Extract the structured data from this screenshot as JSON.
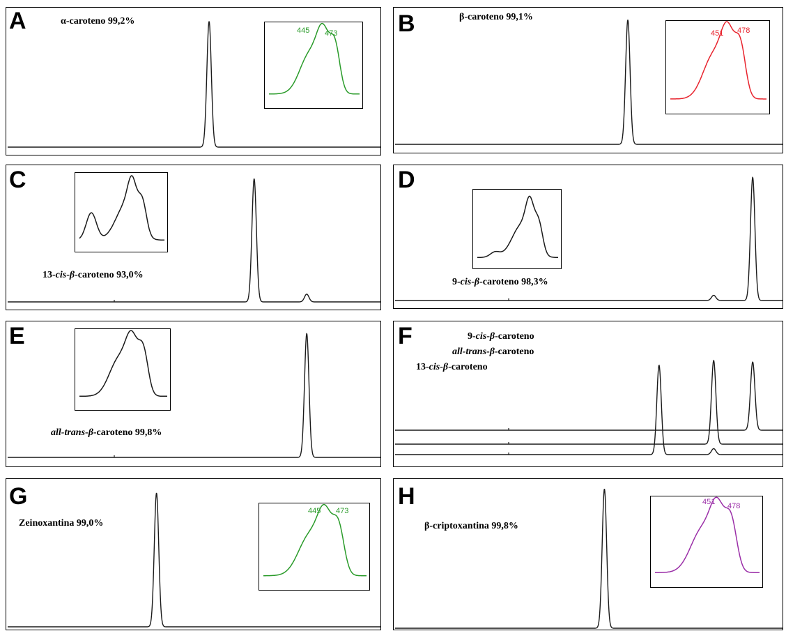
{
  "figure": {
    "panels": [
      {
        "letter": "A",
        "label": "α-caroteno 99,2%"
      },
      {
        "letter": "B",
        "label": "β-caroteno 99,1%"
      },
      {
        "letter": "C",
        "label": "13-cis-β-caroteno 93,0%"
      },
      {
        "letter": "D",
        "label": "9-cis-β-caroteno 98,3%"
      },
      {
        "letter": "E",
        "label": "all-trans-β-caroteno 99,8%"
      },
      {
        "letter": "F",
        "labels": [
          "9-cis-β-caroteno",
          "all-trans-β-caroteno",
          "13-cis-β-caroteno"
        ]
      },
      {
        "letter": "G",
        "label": "Zeinoxantina 99,0%"
      },
      {
        "letter": "H",
        "label": "β-criptoxantina 99,8%"
      }
    ],
    "colors": {
      "trace": "#1a1a1a",
      "green": "#2a9b2a",
      "red": "#e8242e",
      "purple": "#9b2fa8"
    }
  },
  "chart_data": [
    {
      "id": "A",
      "type": "line",
      "chromatogram_peaks": [
        {
          "x": 0.54,
          "height": 0.96
        }
      ],
      "inset": {
        "peak_labels": [
          "445",
          "473"
        ],
        "color": "#2a9b2a"
      }
    },
    {
      "id": "B",
      "type": "line",
      "chromatogram_peaks": [
        {
          "x": 0.6,
          "height": 0.95
        }
      ],
      "inset": {
        "peak_labels": [
          "451",
          "478"
        ],
        "color": "#e8242e"
      }
    },
    {
      "id": "C",
      "type": "line",
      "chromatogram_peaks": [
        {
          "x": 0.66,
          "height": 0.95
        },
        {
          "x": 0.8,
          "height": 0.06
        }
      ],
      "inset": {
        "peak_labels": [],
        "color": "#1a1a1a"
      }
    },
    {
      "id": "D",
      "type": "line",
      "chromatogram_peaks": [
        {
          "x": 0.92,
          "height": 0.95
        },
        {
          "x": 0.82,
          "height": 0.04
        }
      ],
      "inset": {
        "peak_labels": [],
        "color": "#1a1a1a"
      }
    },
    {
      "id": "E",
      "type": "line",
      "chromatogram_peaks": [
        {
          "x": 0.8,
          "height": 0.95
        }
      ],
      "inset": {
        "peak_labels": [],
        "color": "#1a1a1a"
      }
    },
    {
      "id": "F",
      "type": "line",
      "series": [
        {
          "peaks": [
            {
              "x": 0.92,
              "height": 0.72
            }
          ]
        },
        {
          "peaks": [
            {
              "x": 0.82,
              "height": 0.7
            }
          ]
        },
        {
          "peaks": [
            {
              "x": 0.68,
              "height": 0.75
            }
          ]
        }
      ]
    },
    {
      "id": "G",
      "type": "line",
      "chromatogram_peaks": [
        {
          "x": 0.4,
          "height": 0.97
        }
      ],
      "inset": {
        "peak_labels": [
          "445",
          "473"
        ],
        "color": "#2a9b2a"
      }
    },
    {
      "id": "H",
      "type": "line",
      "chromatogram_peaks": [
        {
          "x": 0.54,
          "height": 0.98
        }
      ],
      "inset": {
        "peak_labels": [
          "451",
          "478"
        ],
        "color": "#9b2fa8"
      }
    }
  ]
}
